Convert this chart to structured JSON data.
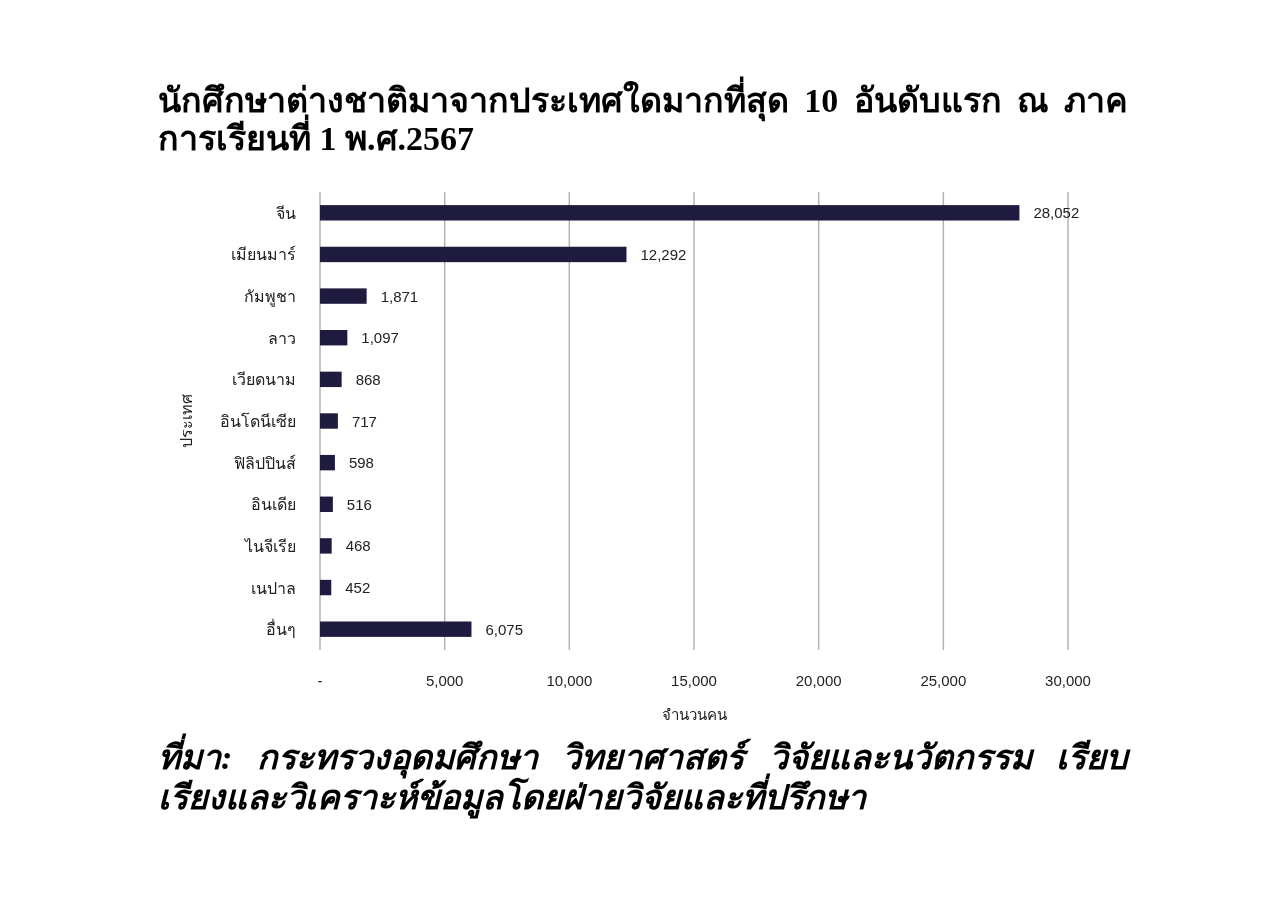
{
  "chart_data": {
    "type": "bar",
    "orientation": "horizontal",
    "title": "นักศึกษาต่างชาติมาจากประเทศใดมากที่สุด 10 อันดับแรก ณ ภาคการเรียนที่ 1 พ.ศ.2567",
    "xlabel": "จำนวนคน",
    "ylabel": "ประเทศ",
    "categories": [
      "จีน",
      "เมียนมาร์",
      "กัมพูชา",
      "ลาว",
      "เวียดนาม",
      "อินโดนีเซีย",
      "ฟิลิปปินส์",
      "อินเดีย",
      "ไนจีเรีย",
      "เนปาล",
      "อื่นๆ"
    ],
    "values": [
      28052,
      12292,
      1871,
      1097,
      868,
      717,
      598,
      516,
      468,
      452,
      6075
    ],
    "value_labels": [
      "28,052",
      "12,292",
      "1,871",
      "1,097",
      "868",
      "717",
      "598",
      "516",
      "468",
      "452",
      "6,075"
    ],
    "color": "#1f1b3f",
    "xlim": [
      0,
      30000
    ],
    "xticks": [
      {
        "value": 0,
        "label": "-"
      },
      {
        "value": 5000,
        "label": "5,000"
      },
      {
        "value": 10000,
        "label": "10,000"
      },
      {
        "value": 15000,
        "label": "15,000"
      },
      {
        "value": 20000,
        "label": "20,000"
      },
      {
        "value": 25000,
        "label": "25,000"
      },
      {
        "value": 30000,
        "label": "30,000"
      }
    ],
    "grid": "x",
    "annotations": [
      "ที่มา: กระทรวงอุดมศึกษา วิทยาศาสตร์ วิจัยและนวัตกรรม เรียบเรียงและวิเคราะห์ข้อมูลโดยฝ่ายวิจัยและที่ปรึกษา"
    ]
  }
}
